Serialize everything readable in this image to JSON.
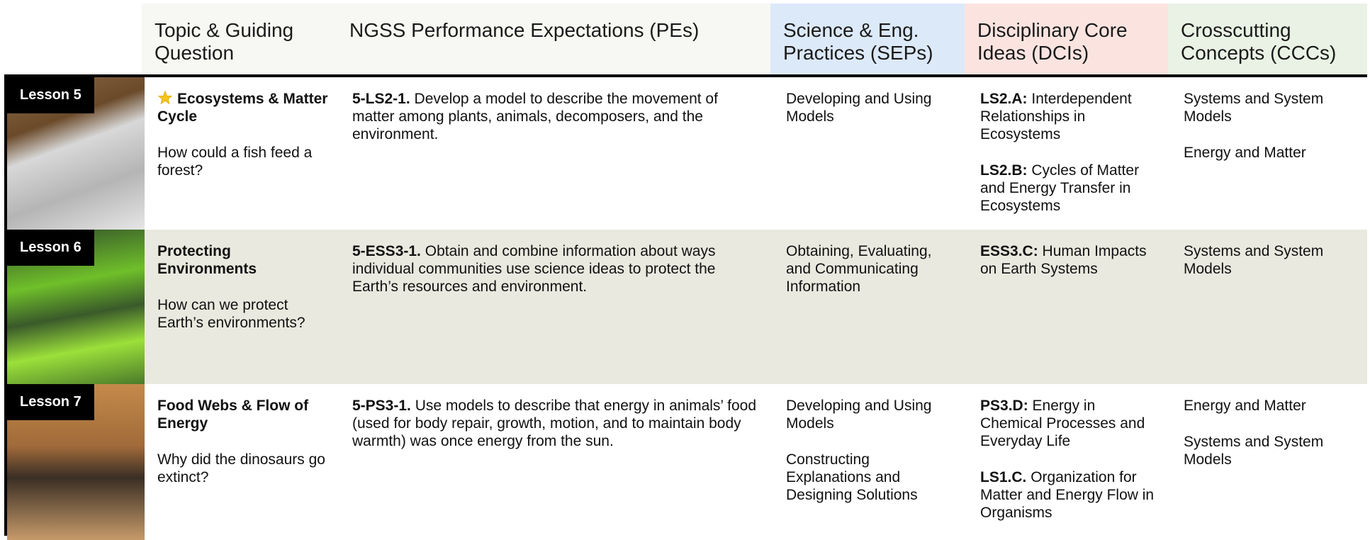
{
  "header": {
    "columns": [
      "Topic & Guiding Question",
      "NGSS Performance Expectations (PEs)",
      "Science & Eng. Practices (SEPs)",
      "Disciplinary Core Ideas (DCIs)",
      "Crosscutting Concepts (CCCs)"
    ]
  },
  "rows": [
    {
      "lesson": "Lesson 5",
      "title": "Ecosystems & Matter Cycle",
      "question": "How could a fish feed a forest?",
      "pe": {
        "code": "5-LS2-1.",
        "text": "Develop a model to describe the movement of matter among plants, animals, decomposers, and the environment."
      },
      "seps": [
        "Developing and Using Models"
      ],
      "dcis": [
        {
          "code": "LS2.A:",
          "text": "Interdependent Relationships in Ecosystems"
        },
        {
          "code": "LS2.B:",
          "text": "Cycles of Matter and Energy Transfer in Ecosystems"
        }
      ],
      "cccs": [
        "Systems and System Models",
        "Energy and Matter"
      ]
    },
    {
      "lesson": "Lesson 6",
      "title": "Protecting Environments",
      "question": "How can we protect Earth’s environments?",
      "pe": {
        "code": "5-ESS3-1.",
        "text": "Obtain and combine information about ways individual communities use science ideas to protect the Earth’s resources and environment."
      },
      "seps": [
        "Obtaining, Evaluating, and Communicating Information"
      ],
      "dcis": [
        {
          "code": "ESS3.C:",
          "text": "Human Impacts on Earth Systems"
        }
      ],
      "cccs": [
        "Systems and System Models"
      ]
    },
    {
      "lesson": "Lesson 7",
      "title": "Food Webs & Flow of Energy",
      "question": "Why did the dinosaurs go extinct?",
      "pe": {
        "code": "5-PS3-1.",
        "text": "Use models to describe that energy in animals’ food (used for body repair, growth, motion, and to maintain body warmth) was once energy from the sun."
      },
      "seps": [
        "Developing and Using Models",
        "Constructing Explanations and Designing Solutions"
      ],
      "dcis": [
        {
          "code": "PS3.D:",
          "text": "Energy in Chemical Processes and Everyday Life"
        },
        {
          "code": "LS1.C.",
          "text": "Organization for Matter and Energy Flow in Organisms"
        }
      ],
      "cccs": [
        "Energy and Matter",
        "Systems and System Models"
      ]
    }
  ]
}
